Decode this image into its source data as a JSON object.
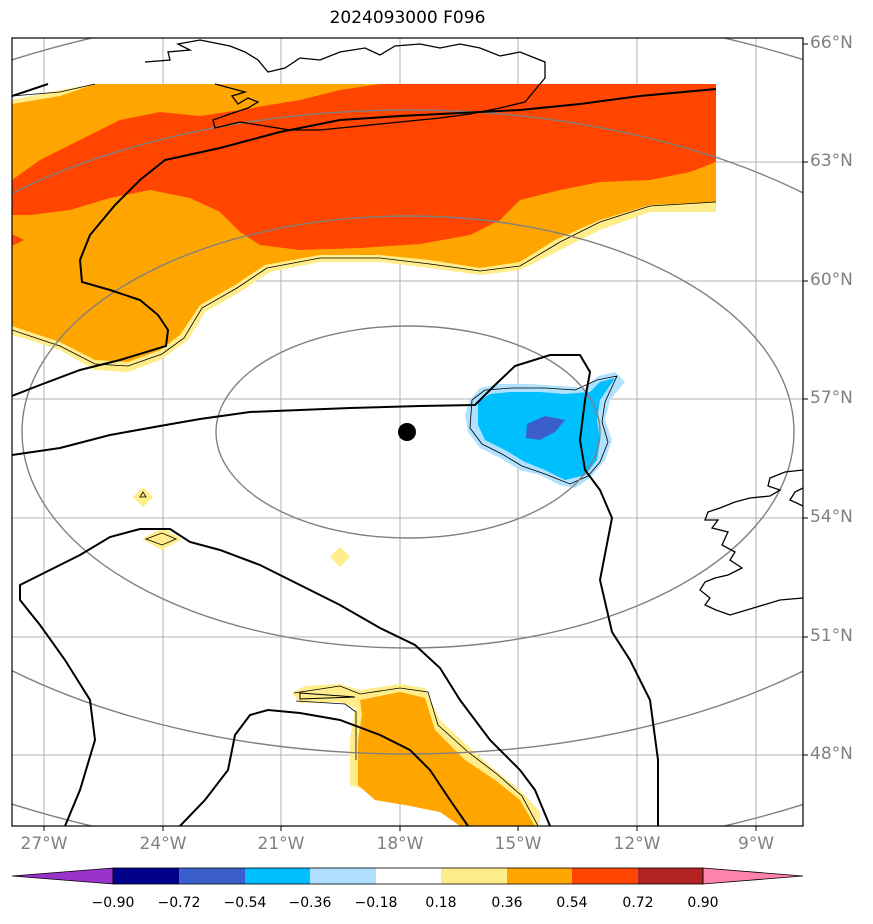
{
  "title": "2024093000 F096",
  "lat_labels": [
    {
      "text": "66°N",
      "value": 66
    },
    {
      "text": "63°N",
      "value": 63
    },
    {
      "text": "60°N",
      "value": 60
    },
    {
      "text": "57°N",
      "value": 57
    },
    {
      "text": "54°N",
      "value": 54
    },
    {
      "text": "51°N",
      "value": 51
    },
    {
      "text": "48°N",
      "value": 48
    }
  ],
  "lon_labels": [
    {
      "text": "27°W",
      "value": -27
    },
    {
      "text": "24°W",
      "value": -24
    },
    {
      "text": "21°W",
      "value": -21
    },
    {
      "text": "18°W",
      "value": -18
    },
    {
      "text": "15°W",
      "value": -15
    },
    {
      "text": "12°W",
      "value": -12
    },
    {
      "text": "9°W",
      "value": -9
    }
  ],
  "colorbar": {
    "colors": [
      "#9933cc",
      "#00008b",
      "#3a5fcd",
      "#00bfff",
      "#b0e2ff",
      "#ffffff",
      "#ffec8b",
      "#ffa500",
      "#ff4500",
      "#b22222",
      "#ff82ab"
    ],
    "ticks": [
      "−0.90",
      "−0.72",
      "−0.54",
      "−0.36",
      "−0.18",
      "0.18",
      "0.36",
      "0.54",
      "0.72",
      "0.90"
    ]
  },
  "center_marker": {
    "lat": 56.2,
    "lon": -17.9
  }
}
